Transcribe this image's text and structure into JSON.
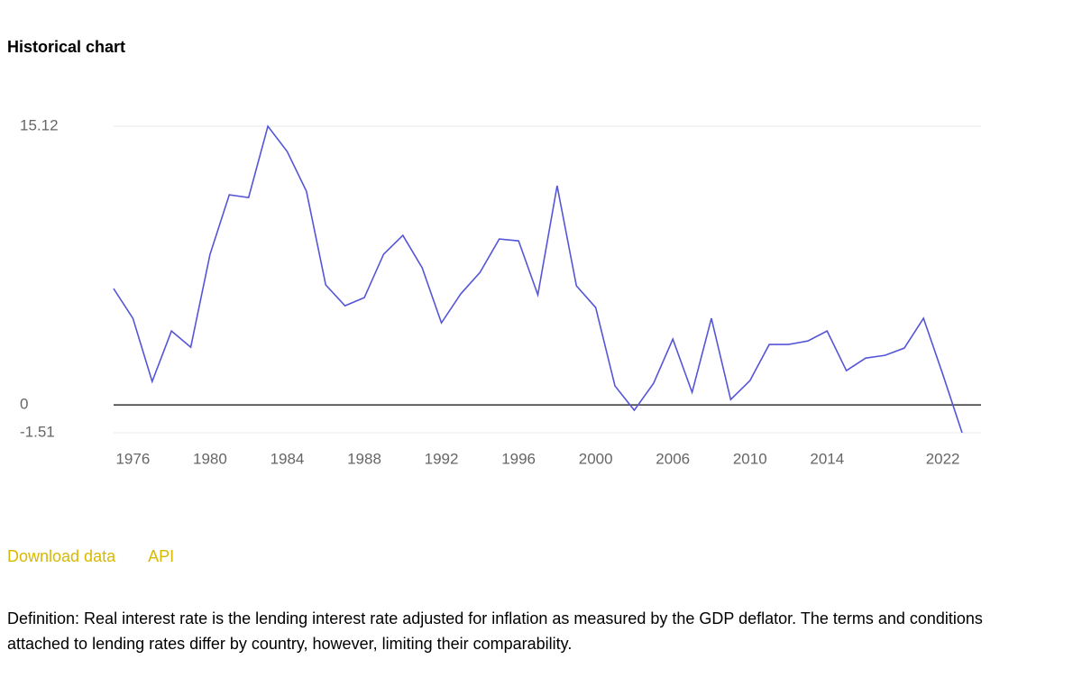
{
  "heading": "Historical chart",
  "links": [
    "Download data",
    "API"
  ],
  "definition": "Definition: Real interest rate is the lending interest rate adjusted for inflation as measured by the GDP deflator. The terms and conditions attached to lending rates differ by country, however, limiting their comparability.",
  "chart_data": {
    "type": "line",
    "categories": [
      null,
      "1976",
      null,
      null,
      null,
      "1980",
      null,
      null,
      null,
      "1984",
      null,
      null,
      null,
      "1988",
      null,
      null,
      null,
      "1992",
      null,
      null,
      null,
      "1996",
      null,
      null,
      null,
      "2000",
      null,
      null,
      null,
      "2006",
      null,
      null,
      null,
      "2010",
      null,
      null,
      null,
      "2014",
      null,
      null,
      null,
      null,
      null,
      "2022",
      null
    ],
    "series": [
      {
        "name": "Real interest rate",
        "color": "#5555d9",
        "values": [
          6.31,
          4.7,
          1.27,
          4.01,
          3.13,
          8.17,
          11.4,
          11.25,
          15.12,
          13.75,
          11.59,
          6.51,
          5.38,
          5.82,
          8.17,
          9.2,
          7.44,
          4.45,
          6.02,
          7.19,
          9.0,
          8.9,
          5.97,
          11.89,
          6.46,
          5.28,
          1.03,
          -0.29,
          1.17,
          3.57,
          0.68,
          4.7,
          0.29,
          1.32,
          3.28,
          3.28,
          3.47,
          4.01,
          1.86,
          2.54,
          2.69,
          3.08,
          4.7,
          1.66,
          -1.51
        ]
      }
    ],
    "ylim": [
      -1.51,
      15.12
    ],
    "yticks": [
      15.12,
      0,
      -1.51
    ],
    "grid": true
  }
}
